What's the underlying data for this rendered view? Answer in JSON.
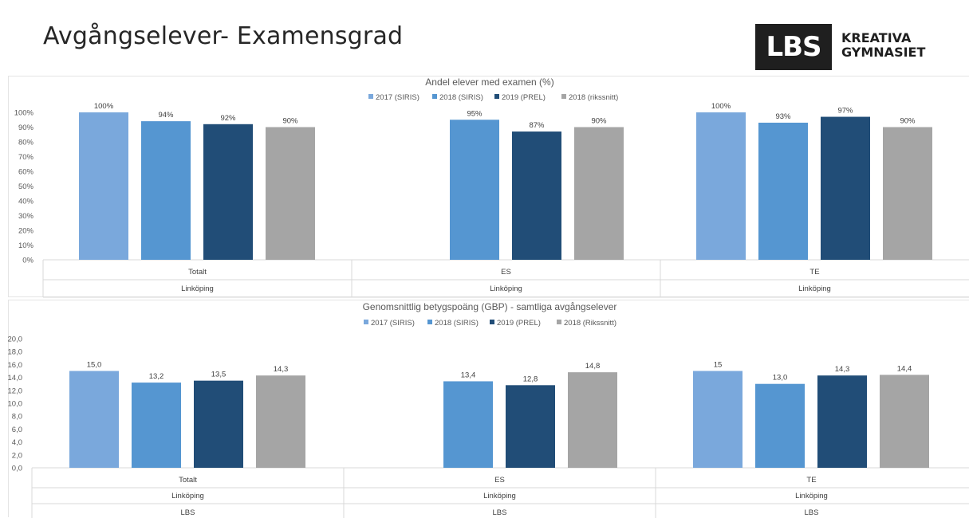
{
  "page": {
    "title": "Avgångselever- Examensgrad",
    "logo": {
      "mark": "LBS",
      "line1": "KREATIVA",
      "line2": "GYMNASIET"
    }
  },
  "colors": {
    "2017": "#7aa8dc",
    "2018": "#5596d1",
    "2019": "#214d77",
    "avg": "#a5a5a5"
  },
  "chart_data": [
    {
      "type": "bar",
      "title": "Andel elever med examen (%)",
      "legend_position": "top",
      "ylim": [
        0,
        100
      ],
      "y_ticks": [
        "0%",
        "10%",
        "20%",
        "30%",
        "40%",
        "50%",
        "60%",
        "70%",
        "80%",
        "90%",
        "100%"
      ],
      "categories": [
        "Totalt",
        "ES",
        "TE"
      ],
      "category_groups": [
        "Linköping",
        "Linköping",
        "Linköping"
      ],
      "series": [
        {
          "name": "2017 (SIRIS)",
          "color_key": "2017",
          "values": [
            100,
            null,
            100
          ],
          "labels": [
            "100%",
            "",
            "100%"
          ]
        },
        {
          "name": "2018 (SIRIS)",
          "color_key": "2018",
          "values": [
            94,
            95,
            93
          ],
          "labels": [
            "94%",
            "95%",
            "93%"
          ]
        },
        {
          "name": "2019 (PREL)",
          "color_key": "2019",
          "values": [
            92,
            87,
            97
          ],
          "labels": [
            "92%",
            "87%",
            "97%"
          ]
        },
        {
          "name": "2018 (rikssnitt)",
          "color_key": "avg",
          "values": [
            90,
            90,
            90
          ],
          "labels": [
            "90%",
            "90%",
            "90%"
          ]
        }
      ]
    },
    {
      "type": "bar",
      "title": "Genomsnittlig betygspoäng (GBP) - samtliga avgångselever",
      "legend_position": "top",
      "ylim": [
        0,
        20
      ],
      "y_ticks": [
        "0,0",
        "2,0",
        "4,0",
        "6,0",
        "8,0",
        "10,0",
        "12,0",
        "14,0",
        "16,0",
        "18,0",
        "20,0"
      ],
      "categories": [
        "Totalt",
        "ES",
        "TE"
      ],
      "category_groups": [
        "Linköping",
        "Linköping",
        "Linköping"
      ],
      "category_groups2": [
        "LBS",
        "LBS",
        "LBS"
      ],
      "series": [
        {
          "name": "2017 (SIRIS)",
          "color_key": "2017",
          "values": [
            15.0,
            null,
            15
          ],
          "labels": [
            "15,0",
            "",
            "15"
          ]
        },
        {
          "name": "2018 (SIRIS)",
          "color_key": "2018",
          "values": [
            13.2,
            13.4,
            13.0
          ],
          "labels": [
            "13,2",
            "13,4",
            "13,0"
          ]
        },
        {
          "name": "2019 (PREL)",
          "color_key": "2019",
          "values": [
            13.5,
            12.8,
            14.3
          ],
          "labels": [
            "13,5",
            "12,8",
            "14,3"
          ]
        },
        {
          "name": "2018 (Rikssnitt)",
          "color_key": "avg",
          "values": [
            14.3,
            14.8,
            14.4
          ],
          "labels": [
            "14,3",
            "14,8",
            "14,4"
          ]
        }
      ]
    }
  ]
}
